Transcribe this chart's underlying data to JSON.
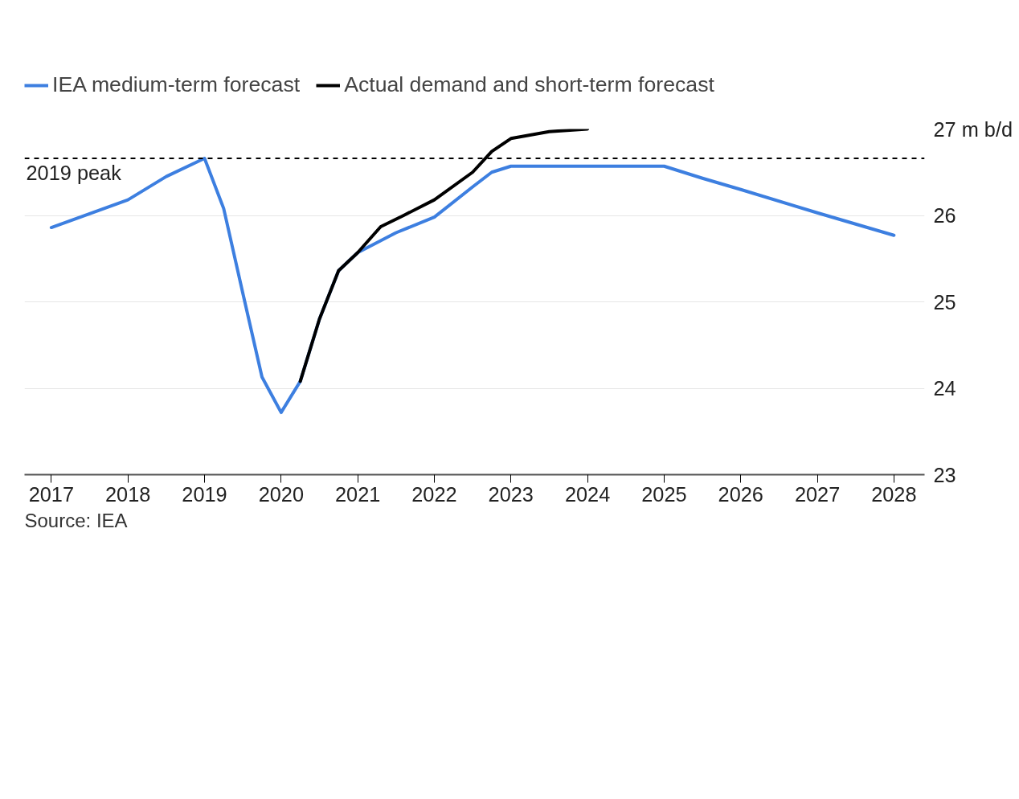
{
  "chart_data": {
    "type": "line",
    "x": [
      2017,
      2018,
      2018.5,
      2019,
      2019.25,
      2019.5,
      2019.75,
      2020,
      2020.25,
      2020.5,
      2020.75,
      2021,
      2021.5,
      2022,
      2022.5,
      2022.75,
      2023,
      2024,
      2025,
      2025.5,
      2026,
      2027,
      2028
    ],
    "series": [
      {
        "name": "IEA medium-term forecast",
        "color": "#3d7fe0",
        "values": [
          25.86,
          26.18,
          26.45,
          26.66,
          26.08,
          25.1,
          24.13,
          23.72,
          24.08,
          24.8,
          25.36,
          25.57,
          25.8,
          25.98,
          26.33,
          26.5,
          26.57,
          26.57,
          26.57,
          26.43,
          26.3,
          26.03,
          25.77
        ]
      },
      {
        "name": "Actual demand and short-term forecast",
        "color": "#000000",
        "x": [
          2020.25,
          2020.5,
          2020.75,
          2021,
          2021.3,
          2021.6,
          2022,
          2022.5,
          2022.75,
          2023,
          2023.5,
          2024
        ],
        "values": [
          24.08,
          24.8,
          25.36,
          25.57,
          25.87,
          26.0,
          26.18,
          26.5,
          26.74,
          26.89,
          26.97,
          27.0
        ]
      }
    ],
    "xlim": [
      2016.65,
      2028.4
    ],
    "xticks": [
      2017,
      2018,
      2019,
      2020,
      2021,
      2022,
      2023,
      2024,
      2025,
      2026,
      2027,
      2028
    ],
    "ylim": [
      23,
      27
    ],
    "yticks": [
      23,
      24,
      25,
      26,
      {
        "value": 27,
        "label": "27 m b/d"
      }
    ],
    "grid": "y",
    "legend": "top left",
    "line_style": "solid",
    "marker": "none",
    "ref_lines": [
      {
        "axis": "y",
        "value": 26.66,
        "label": "2019 peak",
        "color": "#000000",
        "line_style": "dashed"
      }
    ],
    "annotations": [
      "Source: IEA"
    ]
  }
}
